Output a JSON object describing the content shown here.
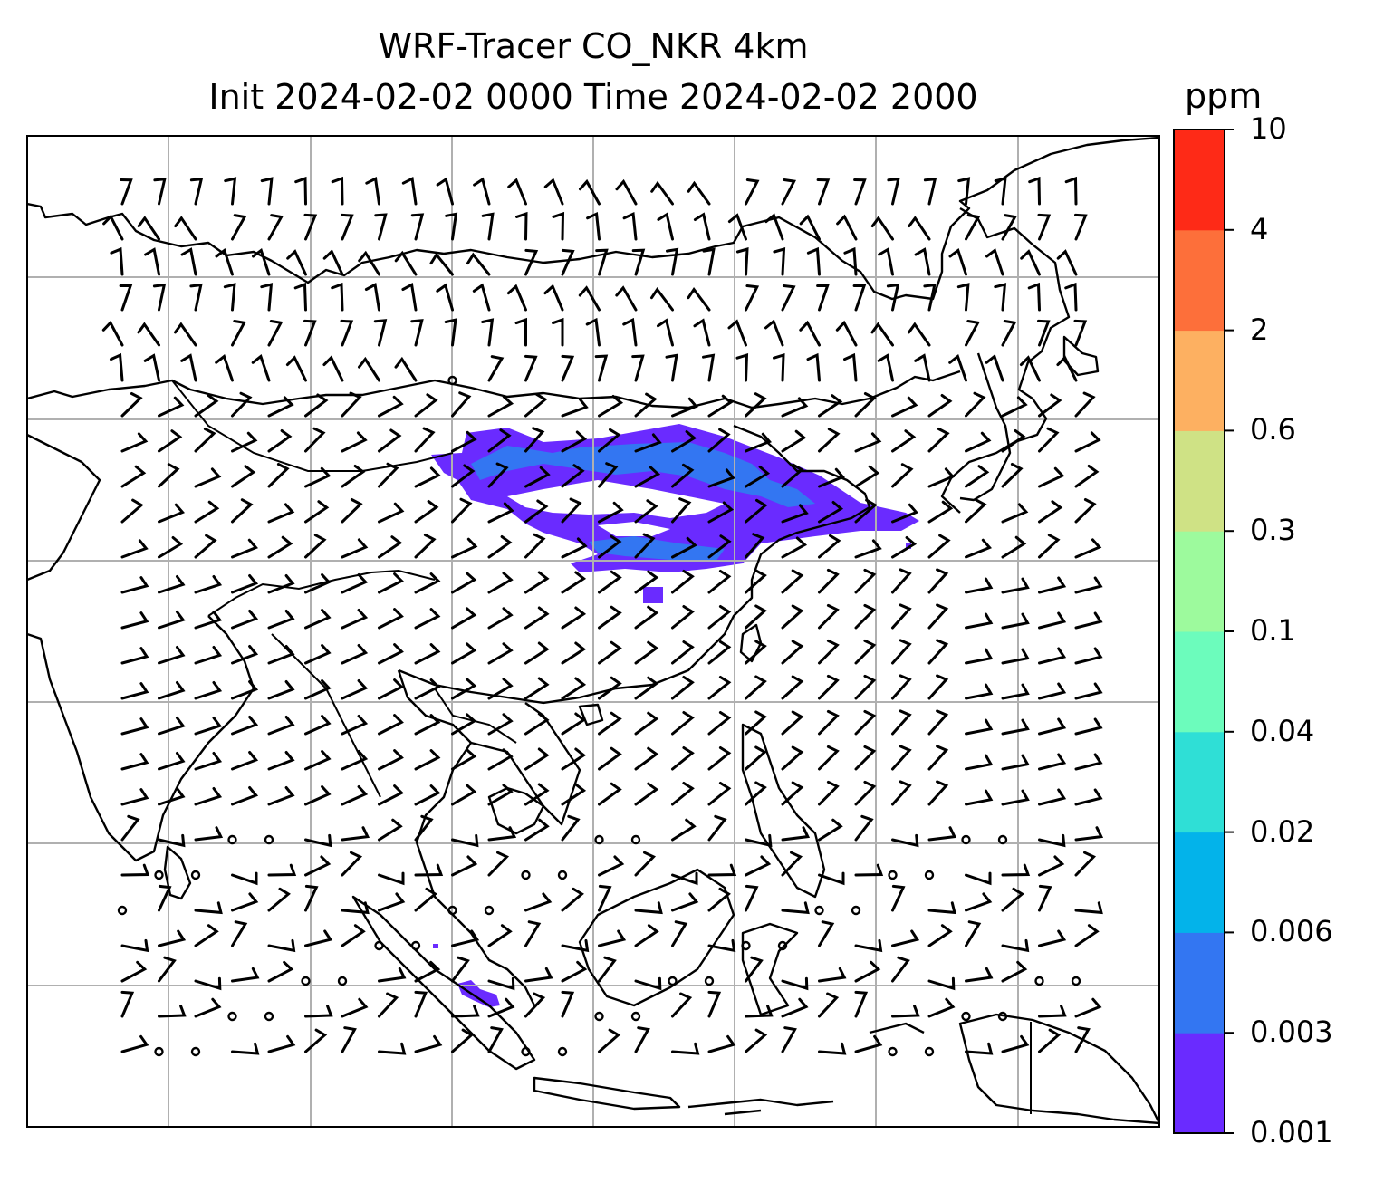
{
  "title_line1": "WRF-Tracer CO_NKR 4km",
  "title_line2": "Init 2024-02-02 0000 Time 2024-02-02 2000",
  "colorbar": {
    "unit": "ppm",
    "levels": [
      "0.001",
      "0.003",
      "0.006",
      "0.02",
      "0.04",
      "0.1",
      "0.3",
      "0.6",
      "2",
      "4",
      "10"
    ],
    "colors": [
      "#6a2bff",
      "#3376f2",
      "#03b3ea",
      "#2fdfd6",
      "#6cfcbc",
      "#9dfa9d",
      "#cfe285",
      "#fdb061",
      "#fd6f3a",
      "#fe2a17"
    ]
  },
  "map": {
    "features": [
      "coastlines",
      "country borders",
      "lat-lon gridlines",
      "wind barbs",
      "tracer concentration shading"
    ],
    "wind_barb_color": "#000000",
    "plume_color": "#6a2bff",
    "plume_core_color": "#3376f2"
  }
}
